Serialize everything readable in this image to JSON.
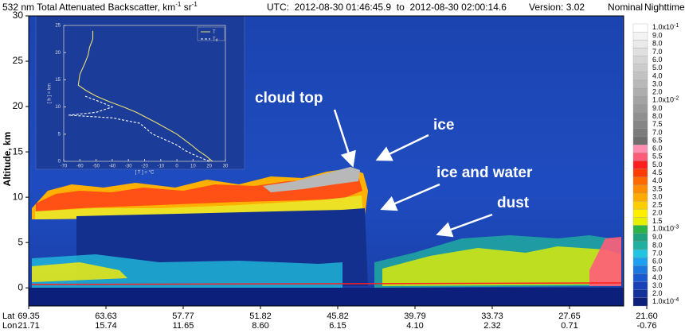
{
  "chart_data": {
    "type": "lidar-curtain",
    "title": {
      "text": "532 nm Total Attenuated Backscatter, km",
      "exp1": "-1",
      "unit2": " sr",
      "exp2": "-1"
    },
    "time": "UTC:  2012-08-30 01:46:45.9  to  2012-08-30 02:00:14.6",
    "version": "Version: 3.02",
    "mode": "Nominal",
    "period": "Nighttime",
    "ylabel": "Altitude, km",
    "ylim": [
      -2,
      30
    ],
    "yticks": [
      0,
      5,
      10,
      15,
      20,
      25,
      30
    ],
    "x_axis": {
      "lat_label": "Lat",
      "lon_label": "Lon",
      "lat": [
        "69.35",
        "63.63",
        "57.77",
        "51.82",
        "45.82",
        "39.79",
        "33.73",
        "27.65",
        "21.60"
      ],
      "lon": [
        "21.71",
        "15.74",
        "11.65",
        "8.60",
        "6.15",
        "4.10",
        "2.32",
        "0.71",
        "-0.76"
      ]
    },
    "annotations": [
      "cloud top",
      "ice",
      "ice and water",
      "dust"
    ],
    "colorbar": {
      "labels": [
        {
          "text": "1.0x10",
          "exp": "-1"
        },
        "9.0",
        "8.0",
        "7.0",
        "6.0",
        "5.0",
        "4.0",
        "3.0",
        "2.0",
        {
          "text": "1.0x10",
          "exp": "-2"
        },
        "9.0",
        "8.0",
        "7.5",
        "7.0",
        "6.5",
        "6.0",
        "5.5",
        "5.0",
        "4.5",
        "4.0",
        "3.5",
        "3.0",
        "2.5",
        "2.0",
        "1.5",
        {
          "text": "1.0x10",
          "exp": "-3"
        },
        "9.0",
        "8.0",
        "7.0",
        "6.0",
        "5.0",
        "4.0",
        "3.0",
        "2.0",
        {
          "text": "1.0x10",
          "exp": "-4"
        }
      ],
      "colors": [
        "#ffffff",
        "#f4f4f4",
        "#eaeaea",
        "#e0e0e0",
        "#d6d6d6",
        "#cccccc",
        "#c2c2c2",
        "#b8b8b8",
        "#aeaeae",
        "#a4a4a4",
        "#9a9a9a",
        "#909090",
        "#868686",
        "#7c7c7c",
        "#6e6e6e",
        "#ff8fb0",
        "#ff5c7a",
        "#ff1e1e",
        "#ff3c00",
        "#ff6a00",
        "#ff8c00",
        "#ffaa00",
        "#ffcc00",
        "#ffee00",
        "#e6f000",
        "#2bb34a",
        "#1fa37e",
        "#20b0a0",
        "#22c4e0",
        "#1ea0f0",
        "#1a78e0",
        "#1a5ad0",
        "#1a40b8",
        "#14309a",
        "#0c1f7a"
      ]
    },
    "inset": {
      "type": "line",
      "xlabel": "[ T ] = °C",
      "ylabel": "[ h ] = km",
      "xlim": [
        -70,
        30
      ],
      "xticks": [
        -70,
        -60,
        -50,
        -40,
        -30,
        -20,
        -10,
        0,
        10,
        20,
        30
      ],
      "ylim": [
        0,
        25
      ],
      "yticks": [
        0,
        5,
        10,
        15,
        20,
        25
      ],
      "series": [
        {
          "name": "T",
          "color": "#e8e070",
          "dashed": false,
          "temperature": [
            22,
            18,
            13,
            9,
            0,
            -12,
            -25,
            -33,
            -42,
            -50,
            -56,
            -61,
            -60,
            -57,
            -55,
            -54,
            -52,
            -52
          ],
          "altitude": [
            0,
            1,
            2,
            3,
            5,
            7,
            9,
            10,
            11,
            12,
            13,
            14,
            16,
            18,
            19.5,
            21,
            22.5,
            24
          ]
        },
        {
          "name": "T",
          "name_sub": "d",
          "color": "#ffffff",
          "dashed": true,
          "temperature": [
            20,
            12,
            5,
            0,
            -15,
            -23,
            -40,
            -67,
            -50,
            -40,
            -48,
            -57
          ],
          "altitude": [
            0,
            1,
            2,
            3,
            5,
            7,
            8,
            8.5,
            9,
            10,
            11,
            12
          ]
        }
      ]
    }
  }
}
